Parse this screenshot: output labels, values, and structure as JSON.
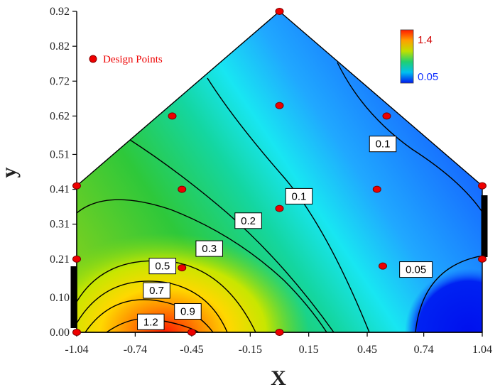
{
  "chart_data": {
    "type": "contour",
    "title": "",
    "xlabel": "X",
    "ylabel": "y",
    "x_ticks": [
      "-1.04",
      "-0.74",
      "-0.45",
      "-0.15",
      "0.15",
      "0.45",
      "0.74",
      "1.04"
    ],
    "y_ticks": [
      "0.00",
      "0.10",
      "0.21",
      "0.31",
      "0.41",
      "0.51",
      "0.62",
      "0.72",
      "0.82",
      "0.92"
    ],
    "xlim": [
      -1.04,
      1.04
    ],
    "ylim": [
      0.0,
      0.92
    ],
    "region_vertices": [
      [
        -1.04,
        0.0
      ],
      [
        1.04,
        0.0
      ],
      [
        1.04,
        0.42
      ],
      [
        0.0,
        0.92
      ],
      [
        -1.04,
        0.42
      ]
    ],
    "colorbar": {
      "max_label": "1.4",
      "min_label": "0.05",
      "max_color": "#ff1a00",
      "min_color": "#0018f0"
    },
    "legend": {
      "label": "Design Points",
      "color": "#ee0000",
      "position": "top-left"
    },
    "design_points": [
      {
        "x": -1.04,
        "y": 0.0
      },
      {
        "x": -0.45,
        "y": 0.0
      },
      {
        "x": 0.0,
        "y": 0.0
      },
      {
        "x": -1.04,
        "y": 0.21
      },
      {
        "x": -0.5,
        "y": 0.185
      },
      {
        "x": 0.53,
        "y": 0.19
      },
      {
        "x": 1.04,
        "y": 0.21
      },
      {
        "x": -1.04,
        "y": 0.42
      },
      {
        "x": -0.5,
        "y": 0.41
      },
      {
        "x": 0.0,
        "y": 0.355
      },
      {
        "x": 0.5,
        "y": 0.41
      },
      {
        "x": 1.04,
        "y": 0.42
      },
      {
        "x": -0.55,
        "y": 0.62
      },
      {
        "x": 0.0,
        "y": 0.65
      },
      {
        "x": 0.55,
        "y": 0.62
      },
      {
        "x": 0.0,
        "y": 0.92
      }
    ],
    "contour_levels": [
      "0.05",
      "0.1",
      "0.1",
      "0.2",
      "0.3",
      "0.5",
      "0.7",
      "0.9",
      "1.2"
    ],
    "contour_labels": [
      {
        "text": "0.1",
        "x": 0.53,
        "y": 0.54
      },
      {
        "text": "0.1",
        "x": 0.1,
        "y": 0.39
      },
      {
        "text": "0.2",
        "x": -0.16,
        "y": 0.32
      },
      {
        "text": "0.3",
        "x": -0.36,
        "y": 0.24
      },
      {
        "text": "0.5",
        "x": -0.6,
        "y": 0.19
      },
      {
        "text": "0.7",
        "x": -0.63,
        "y": 0.12
      },
      {
        "text": "0.9",
        "x": -0.47,
        "y": 0.06
      },
      {
        "text": "1.2",
        "x": -0.66,
        "y": 0.03
      },
      {
        "text": "0.05",
        "x": 0.7,
        "y": 0.18
      }
    ]
  }
}
